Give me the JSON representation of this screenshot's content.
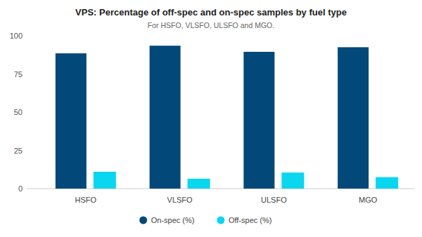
{
  "chart_data": {
    "type": "bar",
    "title": "VPS: Percentage of off-spec and on-spec samples by fuel type",
    "subtitle": "For HSFO, VLSFO, ULSFO and MGO.",
    "categories": [
      "HSFO",
      "VLSFO",
      "ULSFO",
      "MGO"
    ],
    "series": [
      {
        "name": "On-spec (%)",
        "color": "#02497a",
        "values": [
          88.5,
          93.5,
          89.5,
          92.5
        ]
      },
      {
        "name": "Off-spec (%)",
        "color": "#0bd6ef",
        "values": [
          11,
          6.5,
          10.5,
          7.5
        ]
      }
    ],
    "ylim": [
      0,
      100
    ],
    "yticks": [
      0,
      25,
      50,
      75,
      100
    ],
    "grid": false,
    "legend": "bottom"
  }
}
